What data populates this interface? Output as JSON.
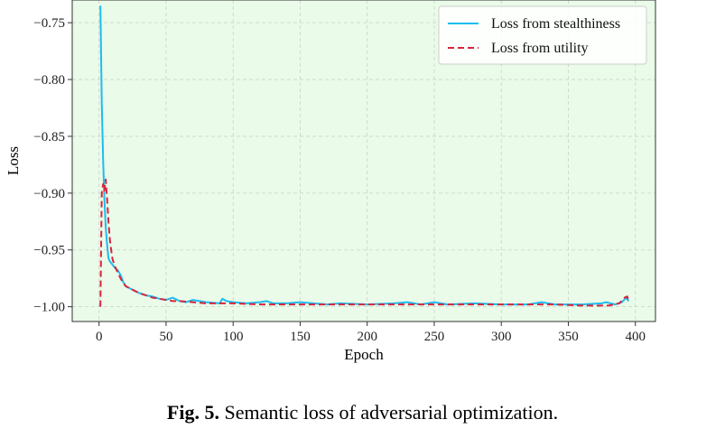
{
  "caption": {
    "label": "Fig. 5.",
    "text": "Semantic loss of adversarial optimization."
  },
  "colors": {
    "plot_background": "#eafbe9",
    "grid": "#c9d3c9",
    "stealthiness": "#1ebcf0",
    "utility": "#d7263d"
  },
  "chart_data": {
    "type": "line",
    "title": "",
    "xlabel": "Epoch",
    "ylabel": "Loss",
    "xlim": [
      -20,
      415
    ],
    "ylim": [
      -1.013,
      -0.73
    ],
    "xticks": [
      0,
      50,
      100,
      150,
      200,
      250,
      300,
      350,
      400
    ],
    "yticks": [
      -1.0,
      -0.95,
      -0.9,
      -0.85,
      -0.8,
      -0.75
    ],
    "xtick_labels": [
      "0",
      "50",
      "100",
      "150",
      "200",
      "250",
      "300",
      "350",
      "400"
    ],
    "ytick_labels": [
      "−1.00",
      "−0.95",
      "−0.90",
      "−0.85",
      "−0.80",
      "−0.75"
    ],
    "grid": true,
    "legend_position": "top-right",
    "series": [
      {
        "name": "Loss from stealthiness",
        "style": "solid",
        "color": "#1ebcf0",
        "x": [
          1,
          2,
          3,
          4,
          5,
          6,
          7,
          8,
          10,
          12,
          14,
          16,
          18,
          20,
          25,
          30,
          35,
          40,
          45,
          50,
          55,
          60,
          65,
          70,
          80,
          90,
          92,
          95,
          100,
          110,
          120,
          125,
          130,
          140,
          150,
          160,
          170,
          180,
          200,
          220,
          230,
          235,
          240,
          250,
          260,
          280,
          300,
          320,
          330,
          335,
          340,
          360,
          375,
          378,
          385,
          390,
          393,
          395
        ],
        "y": [
          -0.735,
          -0.82,
          -0.87,
          -0.905,
          -0.93,
          -0.945,
          -0.957,
          -0.96,
          -0.963,
          -0.966,
          -0.968,
          -0.972,
          -0.978,
          -0.982,
          -0.985,
          -0.988,
          -0.99,
          -0.991,
          -0.993,
          -0.994,
          -0.992,
          -0.995,
          -0.996,
          -0.994,
          -0.996,
          -0.997,
          -0.993,
          -0.995,
          -0.996,
          -0.997,
          -0.996,
          -0.995,
          -0.997,
          -0.997,
          -0.996,
          -0.997,
          -0.998,
          -0.997,
          -0.998,
          -0.997,
          -0.996,
          -0.997,
          -0.998,
          -0.996,
          -0.998,
          -0.997,
          -0.998,
          -0.998,
          -0.996,
          -0.997,
          -0.998,
          -0.998,
          -0.997,
          -0.996,
          -0.998,
          -0.996,
          -0.992,
          -0.995
        ]
      },
      {
        "name": "Loss from utility",
        "style": "dashed",
        "color": "#d7263d",
        "x": [
          1,
          2,
          3,
          4,
          5,
          6,
          7,
          8,
          9,
          10,
          12,
          14,
          16,
          18,
          20,
          25,
          30,
          35,
          40,
          45,
          50,
          55,
          60,
          70,
          80,
          90,
          100,
          120,
          140,
          160,
          180,
          200,
          220,
          240,
          260,
          280,
          300,
          320,
          340,
          360,
          380,
          388,
          392,
          394,
          395
        ],
        "y": [
          -1.0,
          -0.9,
          -0.892,
          -0.898,
          -0.888,
          -0.905,
          -0.925,
          -0.94,
          -0.95,
          -0.958,
          -0.965,
          -0.97,
          -0.975,
          -0.979,
          -0.982,
          -0.985,
          -0.988,
          -0.99,
          -0.992,
          -0.993,
          -0.994,
          -0.995,
          -0.995,
          -0.996,
          -0.997,
          -0.997,
          -0.997,
          -0.998,
          -0.998,
          -0.998,
          -0.998,
          -0.998,
          -0.998,
          -0.998,
          -0.998,
          -0.998,
          -0.998,
          -0.998,
          -0.998,
          -0.999,
          -0.999,
          -0.997,
          -0.992,
          -0.991,
          -0.996
        ]
      }
    ]
  }
}
